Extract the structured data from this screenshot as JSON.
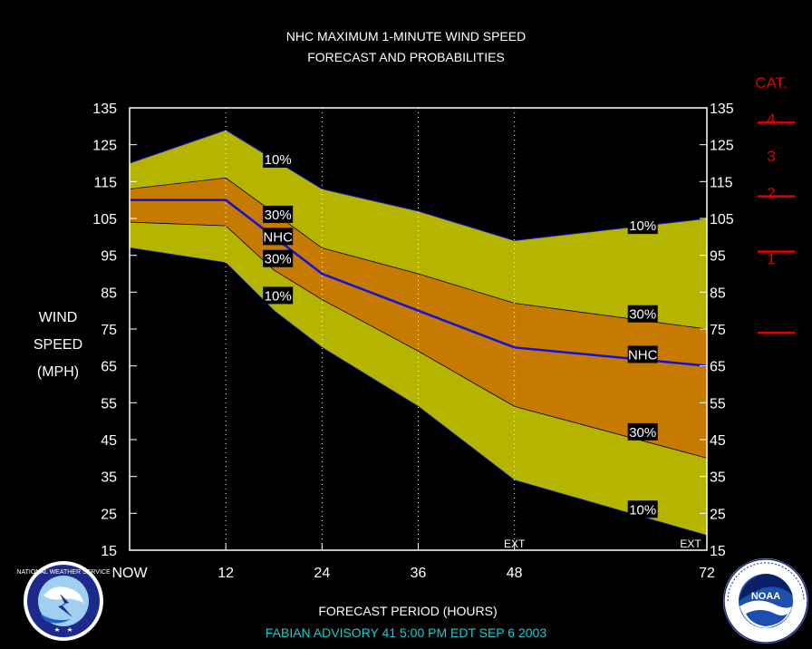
{
  "chart_data": {
    "type": "area",
    "title": "NHC MAXIMUM 1-MINUTE WIND SPEED",
    "subtitle": "FORECAST AND PROBABILITIES",
    "xlabel": "FORECAST PERIOD (HOURS)",
    "ylabel": [
      "WIND",
      "SPEED",
      "(MPH)"
    ],
    "x_tick_labels": [
      "NOW",
      "12",
      "24",
      "36",
      "48",
      "72"
    ],
    "x_ticks": [
      0,
      12,
      24,
      36,
      48,
      72
    ],
    "ext_label": "EXT",
    "ylim": [
      15,
      135
    ],
    "y_ticks": [
      15,
      25,
      35,
      45,
      55,
      65,
      75,
      85,
      95,
      105,
      115,
      125,
      135
    ],
    "x": [
      0,
      12,
      24,
      36,
      48,
      72
    ],
    "nhc_extra_point": {
      "x": 18,
      "y": 98
    },
    "series": [
      {
        "name": "NHC",
        "values": [
          110,
          110,
          90,
          80,
          70,
          65
        ]
      },
      {
        "name": "10%",
        "upper": [
          120,
          129,
          113,
          107,
          99,
          105
        ],
        "lower": [
          97,
          93,
          70,
          54,
          34,
          19
        ]
      },
      {
        "name": "30%",
        "upper": [
          113,
          116,
          97,
          90,
          82,
          75
        ],
        "lower": [
          104,
          103,
          83,
          69,
          54,
          40
        ]
      }
    ],
    "band_lower_x_start": 18,
    "band_lower_start_values": {
      "10%": 80,
      "30%": 91
    },
    "labels": [
      {
        "text": "10%",
        "x": 18.5,
        "y": 121
      },
      {
        "text": "30%",
        "x": 18.5,
        "y": 106
      },
      {
        "text": "NHC",
        "x": 18.5,
        "y": 100
      },
      {
        "text": "30%",
        "x": 18.5,
        "y": 94
      },
      {
        "text": "10%",
        "x": 18.5,
        "y": 84
      },
      {
        "text": "10%",
        "x": 64,
        "y": 103
      },
      {
        "text": "30%",
        "x": 64,
        "y": 79
      },
      {
        "text": "NHC",
        "x": 64,
        "y": 68
      },
      {
        "text": "30%",
        "x": 64,
        "y": 47
      },
      {
        "text": "10%",
        "x": 64,
        "y": 26
      }
    ],
    "colors": {
      "outer_band": "#b5b500",
      "inner_band": "#c77a00",
      "nhc_line": "#1010e0",
      "axes": "#ffffff",
      "category": "#e00000"
    },
    "category_scale": {
      "title": "CAT.",
      "labels": [
        "4",
        "3",
        "2",
        "1"
      ],
      "label_values": [
        132,
        122,
        112,
        94
      ],
      "thresholds": [
        131,
        111,
        96,
        74
      ]
    }
  },
  "footer": {
    "advisory": "FABIAN   ADVISORY  41 5:00  PM  EDT  SEP  6  2003"
  },
  "logos": {
    "left": "NATIONAL WEATHER SERVICE",
    "right": "NOAA"
  }
}
